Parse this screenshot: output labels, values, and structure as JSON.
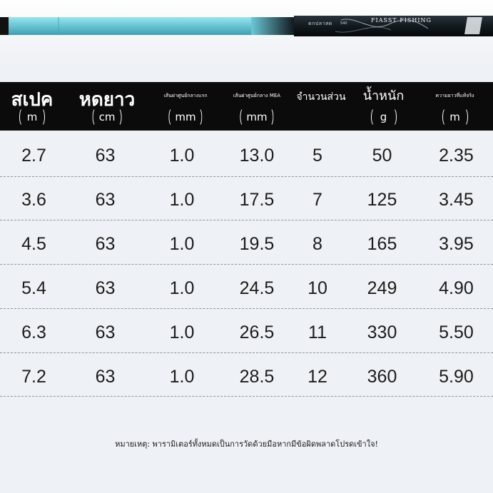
{
  "banner": {
    "rod_brand": "FIASST FISHING",
    "rod_model": "ตกปลาสด",
    "rod_size": "540",
    "colors": {
      "rod_cyan": "#6cc7d6",
      "rod_dark": "#121a1f"
    }
  },
  "table": {
    "headers": [
      {
        "title": "สเปค",
        "unit": "m"
      },
      {
        "title": "หดยาว",
        "unit": "cm"
      },
      {
        "title": "เส้นผ่าศูนย์กลางแรก",
        "unit": "mm"
      },
      {
        "title": "เส้นผ่าศูนย์กลาง MEA",
        "unit": "mm"
      },
      {
        "title": "จำนวนส่วน",
        "unit": ""
      },
      {
        "title": "น้ำหนัก",
        "unit": "g"
      },
      {
        "title": "ความยาวที่แท้จริง",
        "unit": "m"
      }
    ],
    "rows": [
      [
        "2.7",
        "63",
        "1.0",
        "13.0",
        "5",
        "50",
        "2.35"
      ],
      [
        "3.6",
        "63",
        "1.0",
        "17.5",
        "7",
        "125",
        "3.45"
      ],
      [
        "4.5",
        "63",
        "1.0",
        "19.5",
        "8",
        "165",
        "3.95"
      ],
      [
        "5.4",
        "63",
        "1.0",
        "24.5",
        "10",
        "249",
        "4.90"
      ],
      [
        "6.3",
        "63",
        "1.0",
        "26.5",
        "11",
        "330",
        "5.50"
      ],
      [
        "7.2",
        "63",
        "1.0",
        "28.5",
        "12",
        "360",
        "5.90"
      ]
    ]
  },
  "note": "หมายเหตุ: พารามิเตอร์ทั้งหมดเป็นการวัดด้วยมือหากมีข้อผิดพลาดโปรดเข้าใจ!"
}
